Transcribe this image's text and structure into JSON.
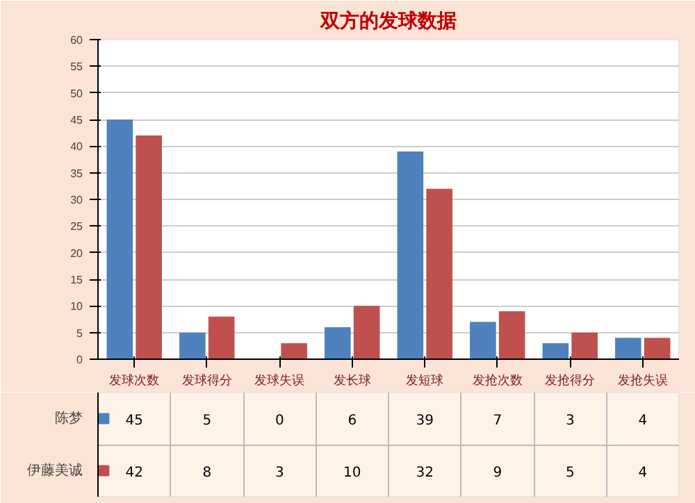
{
  "chart_data": {
    "type": "bar",
    "title": "双方的发球数据",
    "categories": [
      "发球次数",
      "发球得分",
      "发球失误",
      "发长球",
      "发短球",
      "发抢次数",
      "发抢得分",
      "发抢失误"
    ],
    "series": [
      {
        "name": "陈梦",
        "color": "#4f81bd",
        "values": [
          45,
          5,
          0,
          6,
          39,
          7,
          3,
          4
        ]
      },
      {
        "name": "伊藤美诚",
        "color": "#c0504d",
        "values": [
          42,
          8,
          3,
          10,
          32,
          9,
          5,
          4
        ]
      }
    ],
    "ylim": [
      0,
      60
    ],
    "yticks": [
      0,
      5,
      10,
      15,
      20,
      25,
      30,
      35,
      40,
      45,
      50,
      55,
      60
    ],
    "grid": "y",
    "data_labels": true,
    "legend": "bottom"
  }
}
